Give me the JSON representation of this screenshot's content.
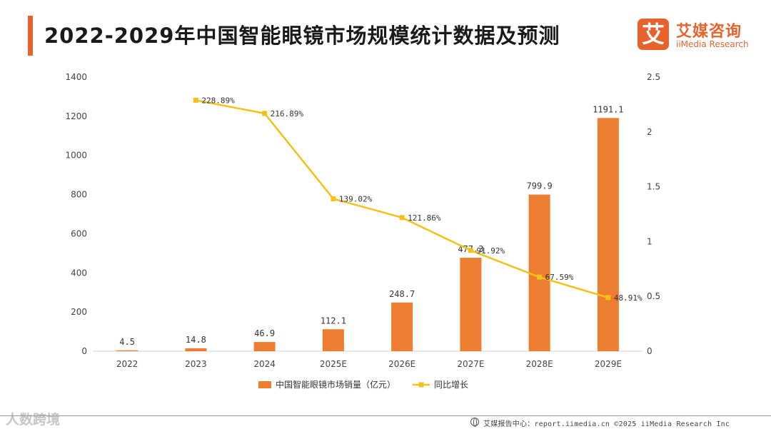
{
  "header": {
    "title": "2022-2029年中国智能眼镜市场规模统计数据及预测"
  },
  "logo": {
    "mark": "艾",
    "name_cn": "艾媒咨询",
    "name_en": "iiMedia Research"
  },
  "colors": {
    "accent": "#e8632c",
    "bar": "#ed7d31",
    "line": "#f2c21a"
  },
  "chart_data": {
    "type": "bar",
    "categories": [
      "2022",
      "2023",
      "2024",
      "2025E",
      "2026E",
      "2027E",
      "2028E",
      "2029E"
    ],
    "series": [
      {
        "name": "中国智能眼镜市场销量（亿元）",
        "type": "bar",
        "axis": "left",
        "values": [
          4.5,
          14.8,
          46.9,
          112.1,
          248.7,
          477.3,
          799.9,
          1191.1
        ],
        "labels": [
          "4.5",
          "14.8",
          "46.9",
          "112.1",
          "248.7",
          "477.3",
          "799.9",
          "1191.1"
        ]
      },
      {
        "name": "同比增长",
        "type": "line",
        "axis": "right",
        "values": [
          null,
          2.2889,
          2.1689,
          1.3902,
          1.2186,
          0.9192,
          0.6759,
          0.4891
        ],
        "labels": [
          "",
          "228.89%",
          "216.89%",
          "139.02%",
          "121.86%",
          "91.92%",
          "67.59%",
          "48.91%"
        ]
      }
    ],
    "y_left": {
      "range": [
        0,
        1400
      ],
      "ticks": [
        "0",
        "200",
        "400",
        "600",
        "800",
        "1000",
        "1200",
        "1400"
      ]
    },
    "y_right": {
      "range": [
        0,
        2.5
      ],
      "ticks": [
        "0",
        "0.5",
        "1",
        "1.5",
        "2",
        "2.5"
      ]
    },
    "grid": false,
    "legend_position": "bottom-center"
  },
  "footer": {
    "watermark": "人数跨境",
    "source": "艾媒报告中心：report.iimedia.cn  ©2025   iiMedia Research Inc"
  }
}
